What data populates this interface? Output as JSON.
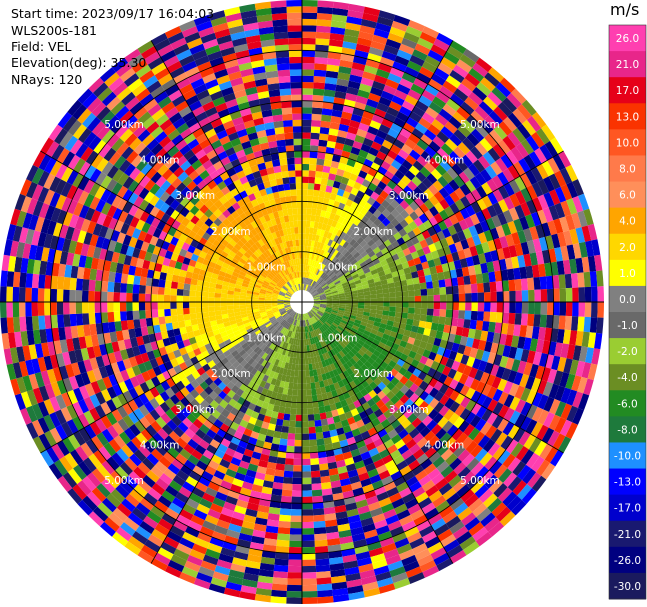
{
  "info": {
    "start_time": "Start time: 2023/09/17 16:04:03",
    "instrument": "WLS200s-181",
    "field": "Field: VEL",
    "elevation": "Elevation(deg): 35.30",
    "nrays": "NRays: 120"
  },
  "chart_data": {
    "type": "heatmap",
    "subtype": "polar-ppi",
    "field": "VEL",
    "nrays": 120,
    "elevation_deg": 35.3,
    "range_rings_km": [
      1,
      2,
      3,
      4,
      5
    ],
    "range_ring_labels": [
      "1.00km",
      "2.00km",
      "3.00km",
      "4.00km",
      "5.00km"
    ],
    "max_range_km": 6.0,
    "colorbar": {
      "unit": "m/s",
      "tick_labels": [
        "26.0",
        "21.0",
        "17.0",
        "13.0",
        "10.0",
        "8.0",
        "6.0",
        "4.0",
        "2.0",
        "1.0",
        "0.0",
        "-1.0",
        "-2.0",
        "-4.0",
        "-6.0",
        "-8.0",
        "-10.0",
        "-13.0",
        "-17.0",
        "-21.0",
        "-26.0",
        "-30.0"
      ],
      "bins": [
        {
          "range": [
            26,
            30
          ],
          "color": "#ff3fb0"
        },
        {
          "range": [
            21,
            26
          ],
          "color": "#e8268a"
        },
        {
          "range": [
            17,
            21
          ],
          "color": "#e60019"
        },
        {
          "range": [
            13,
            17
          ],
          "color": "#fa3300"
        },
        {
          "range": [
            10,
            13
          ],
          "color": "#ff5722"
        },
        {
          "range": [
            8,
            10
          ],
          "color": "#ff7a4a"
        },
        {
          "range": [
            6,
            8
          ],
          "color": "#ff8f5a"
        },
        {
          "range": [
            4,
            6
          ],
          "color": "#ffa500"
        },
        {
          "range": [
            2,
            4
          ],
          "color": "#ffd700"
        },
        {
          "range": [
            1,
            2
          ],
          "color": "#ffff00"
        },
        {
          "range": [
            0,
            1
          ],
          "color": "#808080"
        },
        {
          "range": [
            -1,
            0
          ],
          "color": "#696969"
        },
        {
          "range": [
            -2,
            -1
          ],
          "color": "#9acd32"
        },
        {
          "range": [
            -4,
            -2
          ],
          "color": "#6b8e23"
        },
        {
          "range": [
            -6,
            -4
          ],
          "color": "#228b22"
        },
        {
          "range": [
            -8,
            -6
          ],
          "color": "#1e7a3c"
        },
        {
          "range": [
            -10,
            -8
          ],
          "color": "#1e90ff"
        },
        {
          "range": [
            -13,
            -10
          ],
          "color": "#0000ff"
        },
        {
          "range": [
            -17,
            -13
          ],
          "color": "#0000cd"
        },
        {
          "range": [
            -21,
            -17
          ],
          "color": "#191970"
        },
        {
          "range": [
            -26,
            -21
          ],
          "color": "#000080"
        },
        {
          "range": [
            -30,
            -26
          ],
          "color": "#1a1a5e"
        }
      ]
    },
    "inner_pattern": {
      "description_values": "positive velocities (yellow/orange, 2 to 6 m/s) toward north-west, negative (green, -2 to -8 m/s) toward south-east, near zero (gray) at center and edges; noise beyond ~2.5 km"
    }
  }
}
